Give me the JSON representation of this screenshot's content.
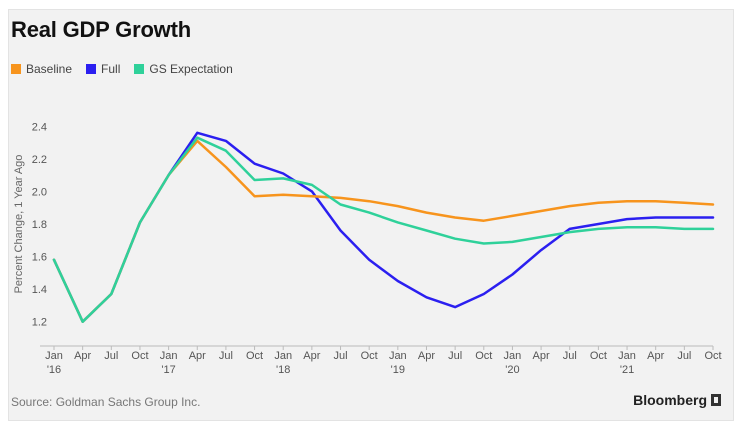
{
  "chart_data": {
    "type": "line",
    "title": "Real GDP Growth",
    "ylabel": "Percent Change, 1 Year Ago",
    "ylim": [
      1.1,
      2.5
    ],
    "yticks": [
      "1.2",
      "1.4",
      "1.6",
      "1.8",
      "2.0",
      "2.2",
      "2.4"
    ],
    "x": [
      "Jan 2016",
      "Apr 2016",
      "Jul 2016",
      "Oct 2016",
      "Jan 2017",
      "Apr 2017",
      "Jul 2017",
      "Oct 2017",
      "Jan 2018",
      "Apr 2018",
      "Jul 2018",
      "Oct 2018",
      "Jan 2019",
      "Apr 2019",
      "Jul 2019",
      "Oct 2019",
      "Jan 2020",
      "Apr 2020",
      "Jul 2020",
      "Oct 2020",
      "Jan 2021",
      "Apr 2021",
      "Jul 2021",
      "Oct 2021"
    ],
    "x_tick_labels": [
      {
        "month": "Jan",
        "year": "'16"
      },
      {
        "month": "Apr",
        "year": ""
      },
      {
        "month": "Jul",
        "year": ""
      },
      {
        "month": "Oct",
        "year": ""
      },
      {
        "month": "Jan",
        "year": "'17"
      },
      {
        "month": "Apr",
        "year": ""
      },
      {
        "month": "Jul",
        "year": ""
      },
      {
        "month": "Oct",
        "year": ""
      },
      {
        "month": "Jan",
        "year": "'18"
      },
      {
        "month": "Apr",
        "year": ""
      },
      {
        "month": "Jul",
        "year": ""
      },
      {
        "month": "Oct",
        "year": ""
      },
      {
        "month": "Jan",
        "year": "'19"
      },
      {
        "month": "Apr",
        "year": ""
      },
      {
        "month": "Jul",
        "year": ""
      },
      {
        "month": "Oct",
        "year": ""
      },
      {
        "month": "Jan",
        "year": "'20"
      },
      {
        "month": "Apr",
        "year": ""
      },
      {
        "month": "Jul",
        "year": ""
      },
      {
        "month": "Oct",
        "year": ""
      },
      {
        "month": "Jan",
        "year": "'21"
      },
      {
        "month": "Apr",
        "year": ""
      },
      {
        "month": "Jul",
        "year": ""
      },
      {
        "month": "Oct",
        "year": ""
      }
    ],
    "legend_position": "top-left",
    "grid": false,
    "series": [
      {
        "name": "Baseline",
        "color": "#f7941d",
        "values": [
          1.58,
          1.2,
          1.37,
          1.81,
          2.1,
          2.31,
          2.15,
          1.97,
          1.98,
          1.97,
          1.96,
          1.94,
          1.91,
          1.87,
          1.84,
          1.82,
          1.85,
          1.88,
          1.91,
          1.93,
          1.94,
          1.94,
          1.93,
          1.92
        ]
      },
      {
        "name": "Full",
        "color": "#2b1ff0",
        "values": [
          1.58,
          1.2,
          1.37,
          1.81,
          2.1,
          2.36,
          2.31,
          2.17,
          2.11,
          2.0,
          1.76,
          1.58,
          1.45,
          1.35,
          1.29,
          1.37,
          1.49,
          1.64,
          1.77,
          1.8,
          1.83,
          1.84,
          1.84,
          1.84
        ]
      },
      {
        "name": "GS Expectation",
        "color": "#2fd19a",
        "values": [
          1.58,
          1.2,
          1.37,
          1.81,
          2.1,
          2.33,
          2.25,
          2.07,
          2.08,
          2.04,
          1.92,
          1.87,
          1.81,
          1.76,
          1.71,
          1.68,
          1.69,
          1.72,
          1.75,
          1.77,
          1.78,
          1.78,
          1.77,
          1.77
        ]
      }
    ]
  },
  "footer": {
    "source": "Source: Goldman Sachs Group Inc.",
    "brand": "Bloomberg"
  }
}
